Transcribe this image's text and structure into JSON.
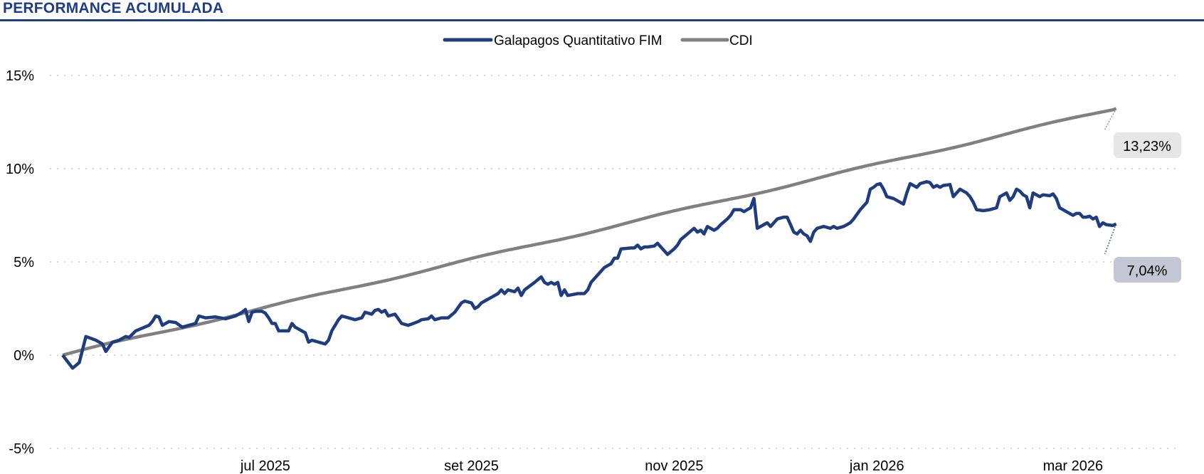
{
  "header": {
    "title": "PERFORMANCE ACUMULADA"
  },
  "colors": {
    "title": "#1f3c88",
    "fund": "#1f3c7e",
    "cdi": "#808080",
    "grid": "#c8c8c8",
    "fund_label_bg": "#c4c6d4",
    "cdi_label_bg": "#e6e6e6"
  },
  "chart_data": {
    "type": "line",
    "title": "PERFORMANCE ACUMULADA",
    "xlabel": "",
    "ylabel": "",
    "ylim": [
      -5,
      15
    ],
    "yticks": [
      15,
      10,
      5,
      0,
      -5
    ],
    "ytick_labels": [
      "15%",
      "10%",
      "5%",
      "0%",
      "-5%"
    ],
    "x_start": "2025-05-01",
    "x_end": "2026-03-31",
    "x_period_days": 334,
    "xticks": [
      {
        "day": 61,
        "label": "jul 2025"
      },
      {
        "day": 123,
        "label": "set 2025"
      },
      {
        "day": 184,
        "label": "nov 2025"
      },
      {
        "day": 245,
        "label": "jan 2026"
      },
      {
        "day": 304,
        "label": "mar 2026"
      }
    ],
    "legend": [
      "Galapagos Quantitativo FIM",
      "CDI"
    ],
    "grid": true,
    "series": [
      {
        "name": "Galapagos Quantitativo FIM",
        "end_label": "7,04%",
        "points": [
          [
            0,
            0
          ],
          [
            3,
            -0.7
          ],
          [
            5,
            -0.4
          ],
          [
            7,
            1.0
          ],
          [
            10,
            0.8
          ],
          [
            12,
            0.6
          ],
          [
            13,
            0.2
          ],
          [
            15,
            0.7
          ],
          [
            17,
            0.8
          ],
          [
            19,
            1.0
          ],
          [
            20,
            0.95
          ],
          [
            22,
            1.3
          ],
          [
            26,
            1.6
          ],
          [
            27,
            1.8
          ],
          [
            28,
            2.1
          ],
          [
            29,
            2.05
          ],
          [
            30,
            1.6
          ],
          [
            32,
            1.8
          ],
          [
            34,
            1.75
          ],
          [
            36,
            1.5
          ],
          [
            38,
            1.6
          ],
          [
            40,
            1.7
          ],
          [
            41,
            2.1
          ],
          [
            43,
            2.0
          ],
          [
            46,
            2.05
          ],
          [
            49,
            1.95
          ],
          [
            52,
            2.1
          ],
          [
            54,
            2.3
          ],
          [
            55,
            2.45
          ],
          [
            56,
            1.8
          ],
          [
            57,
            2.3
          ],
          [
            58,
            2.35
          ],
          [
            60,
            2.35
          ],
          [
            61,
            2.25
          ],
          [
            62,
            2.0
          ],
          [
            63,
            1.7
          ],
          [
            64,
            1.7
          ],
          [
            65,
            1.3
          ],
          [
            68,
            1.3
          ],
          [
            69,
            1.7
          ],
          [
            70,
            1.5
          ],
          [
            73,
            1.2
          ],
          [
            74,
            0.7
          ],
          [
            75,
            0.8
          ],
          [
            76,
            0.75
          ],
          [
            79,
            0.6
          ],
          [
            80,
            0.8
          ],
          [
            81,
            1.3
          ],
          [
            83,
            1.9
          ],
          [
            84,
            2.1
          ],
          [
            86,
            2.0
          ],
          [
            88,
            1.9
          ],
          [
            90,
            2.0
          ],
          [
            91,
            2.3
          ],
          [
            93,
            2.2
          ],
          [
            94,
            2.4
          ],
          [
            95,
            2.45
          ],
          [
            96,
            2.3
          ],
          [
            97,
            2.4
          ],
          [
            98,
            2.1
          ],
          [
            100,
            2.2
          ],
          [
            102,
            1.7
          ],
          [
            104,
            1.6
          ],
          [
            107,
            1.8
          ],
          [
            108,
            1.9
          ],
          [
            110,
            1.95
          ],
          [
            111,
            2.1
          ],
          [
            112,
            1.9
          ],
          [
            114,
            2.0
          ],
          [
            116,
            2.0
          ],
          [
            118,
            2.3
          ],
          [
            120,
            2.8
          ],
          [
            121,
            2.9
          ],
          [
            123,
            2.8
          ],
          [
            124,
            2.5
          ],
          [
            125,
            2.6
          ],
          [
            126,
            2.8
          ],
          [
            128,
            3.0
          ],
          [
            129,
            3.1
          ],
          [
            131,
            3.3
          ],
          [
            132,
            3.5
          ],
          [
            133,
            3.3
          ],
          [
            134,
            3.5
          ],
          [
            136,
            3.4
          ],
          [
            137,
            3.6
          ],
          [
            138,
            3.2
          ],
          [
            139,
            3.5
          ],
          [
            142,
            3.9
          ],
          [
            144,
            4.2
          ],
          [
            145,
            3.9
          ],
          [
            146,
            3.8
          ],
          [
            147,
            3.9
          ],
          [
            148,
            3.8
          ],
          [
            149,
            3.9
          ],
          [
            150,
            3.2
          ],
          [
            151,
            3.5
          ],
          [
            152,
            3.2
          ],
          [
            155,
            3.3
          ],
          [
            157,
            3.3
          ],
          [
            158,
            3.5
          ],
          [
            159,
            3.9
          ],
          [
            161,
            4.3
          ],
          [
            163,
            4.7
          ],
          [
            164,
            4.8
          ],
          [
            165,
            4.9
          ],
          [
            166,
            5.2
          ],
          [
            167,
            5.2
          ],
          [
            168,
            5.7
          ],
          [
            171,
            5.75
          ],
          [
            172,
            5.75
          ],
          [
            173,
            5.9
          ],
          [
            174,
            5.7
          ],
          [
            175,
            5.8
          ],
          [
            176,
            5.8
          ],
          [
            178,
            5.85
          ],
          [
            179,
            6.0
          ],
          [
            181,
            5.6
          ],
          [
            182,
            5.4
          ],
          [
            184,
            5.7
          ],
          [
            185,
            5.9
          ],
          [
            186,
            6.2
          ],
          [
            188,
            6.5
          ],
          [
            190,
            6.8
          ],
          [
            191,
            6.6
          ],
          [
            192,
            6.7
          ],
          [
            193,
            6.5
          ],
          [
            194,
            6.9
          ],
          [
            196,
            6.7
          ],
          [
            197,
            6.8
          ],
          [
            198,
            7.0
          ],
          [
            200,
            7.3
          ],
          [
            201,
            7.5
          ],
          [
            202,
            7.8
          ],
          [
            204,
            7.8
          ],
          [
            205,
            7.7
          ],
          [
            206,
            7.8
          ],
          [
            207,
            7.9
          ],
          [
            208,
            8.4
          ],
          [
            209,
            6.8
          ],
          [
            211,
            7.0
          ],
          [
            212,
            7.1
          ],
          [
            213,
            6.9
          ],
          [
            215,
            7.3
          ],
          [
            217,
            7.4
          ],
          [
            218,
            7.4
          ],
          [
            219,
            7.0
          ],
          [
            220,
            6.6
          ],
          [
            221,
            6.5
          ],
          [
            222,
            6.7
          ],
          [
            223,
            6.5
          ],
          [
            224,
            6.4
          ],
          [
            225,
            6.1
          ],
          [
            226,
            6.6
          ],
          [
            227,
            6.8
          ],
          [
            229,
            6.9
          ],
          [
            230,
            6.85
          ],
          [
            231,
            6.8
          ],
          [
            232,
            6.9
          ],
          [
            233,
            6.8
          ],
          [
            235,
            6.9
          ],
          [
            237,
            7.1
          ],
          [
            238,
            7.3
          ],
          [
            240,
            7.8
          ],
          [
            241,
            8.0
          ],
          [
            242,
            8.2
          ],
          [
            243,
            8.9
          ],
          [
            244,
            9.0
          ],
          [
            245,
            9.15
          ],
          [
            246,
            9.2
          ],
          [
            247,
            8.9
          ],
          [
            248,
            8.5
          ],
          [
            250,
            8.4
          ],
          [
            252,
            8.2
          ],
          [
            253,
            8.1
          ],
          [
            254,
            8.7
          ],
          [
            255,
            9.2
          ],
          [
            257,
            9.0
          ],
          [
            258,
            9.2
          ],
          [
            260,
            9.3
          ],
          [
            261,
            9.25
          ],
          [
            262,
            9.0
          ],
          [
            263,
            9.1
          ],
          [
            264,
            9.0
          ],
          [
            265,
            9.1
          ],
          [
            267,
            9.15
          ],
          [
            268,
            8.5
          ],
          [
            270,
            8.9
          ],
          [
            271,
            8.8
          ],
          [
            272,
            8.7
          ],
          [
            273,
            8.5
          ],
          [
            274,
            8.2
          ],
          [
            275,
            7.8
          ],
          [
            277,
            7.75
          ],
          [
            279,
            7.8
          ],
          [
            281,
            7.9
          ],
          [
            282,
            8.5
          ],
          [
            284,
            8.7
          ],
          [
            285,
            8.3
          ],
          [
            286,
            8.5
          ],
          [
            287,
            8.9
          ],
          [
            288,
            8.8
          ],
          [
            289,
            8.6
          ],
          [
            290,
            8.5
          ],
          [
            291,
            7.9
          ],
          [
            292,
            8.7
          ],
          [
            293,
            8.6
          ],
          [
            294,
            8.5
          ],
          [
            295,
            8.6
          ],
          [
            297,
            8.55
          ],
          [
            298,
            8.65
          ],
          [
            299,
            8.4
          ],
          [
            300,
            7.9
          ],
          [
            301,
            7.8
          ],
          [
            302,
            7.7
          ],
          [
            304,
            7.5
          ],
          [
            305,
            7.6
          ],
          [
            306,
            7.6
          ],
          [
            307,
            7.4
          ],
          [
            308,
            7.4
          ],
          [
            309,
            7.45
          ],
          [
            310,
            7.3
          ],
          [
            311,
            7.4
          ],
          [
            312,
            6.9
          ],
          [
            313,
            7.1
          ],
          [
            314,
            7.0
          ],
          [
            316,
            6.95
          ],
          [
            317,
            7.04
          ]
        ]
      },
      {
        "name": "CDI",
        "end_label": "13,23%",
        "linear_end": [
          317,
          13.23
        ],
        "points": [
          [
            0,
            0
          ],
          [
            317,
            13.23
          ]
        ]
      }
    ]
  }
}
